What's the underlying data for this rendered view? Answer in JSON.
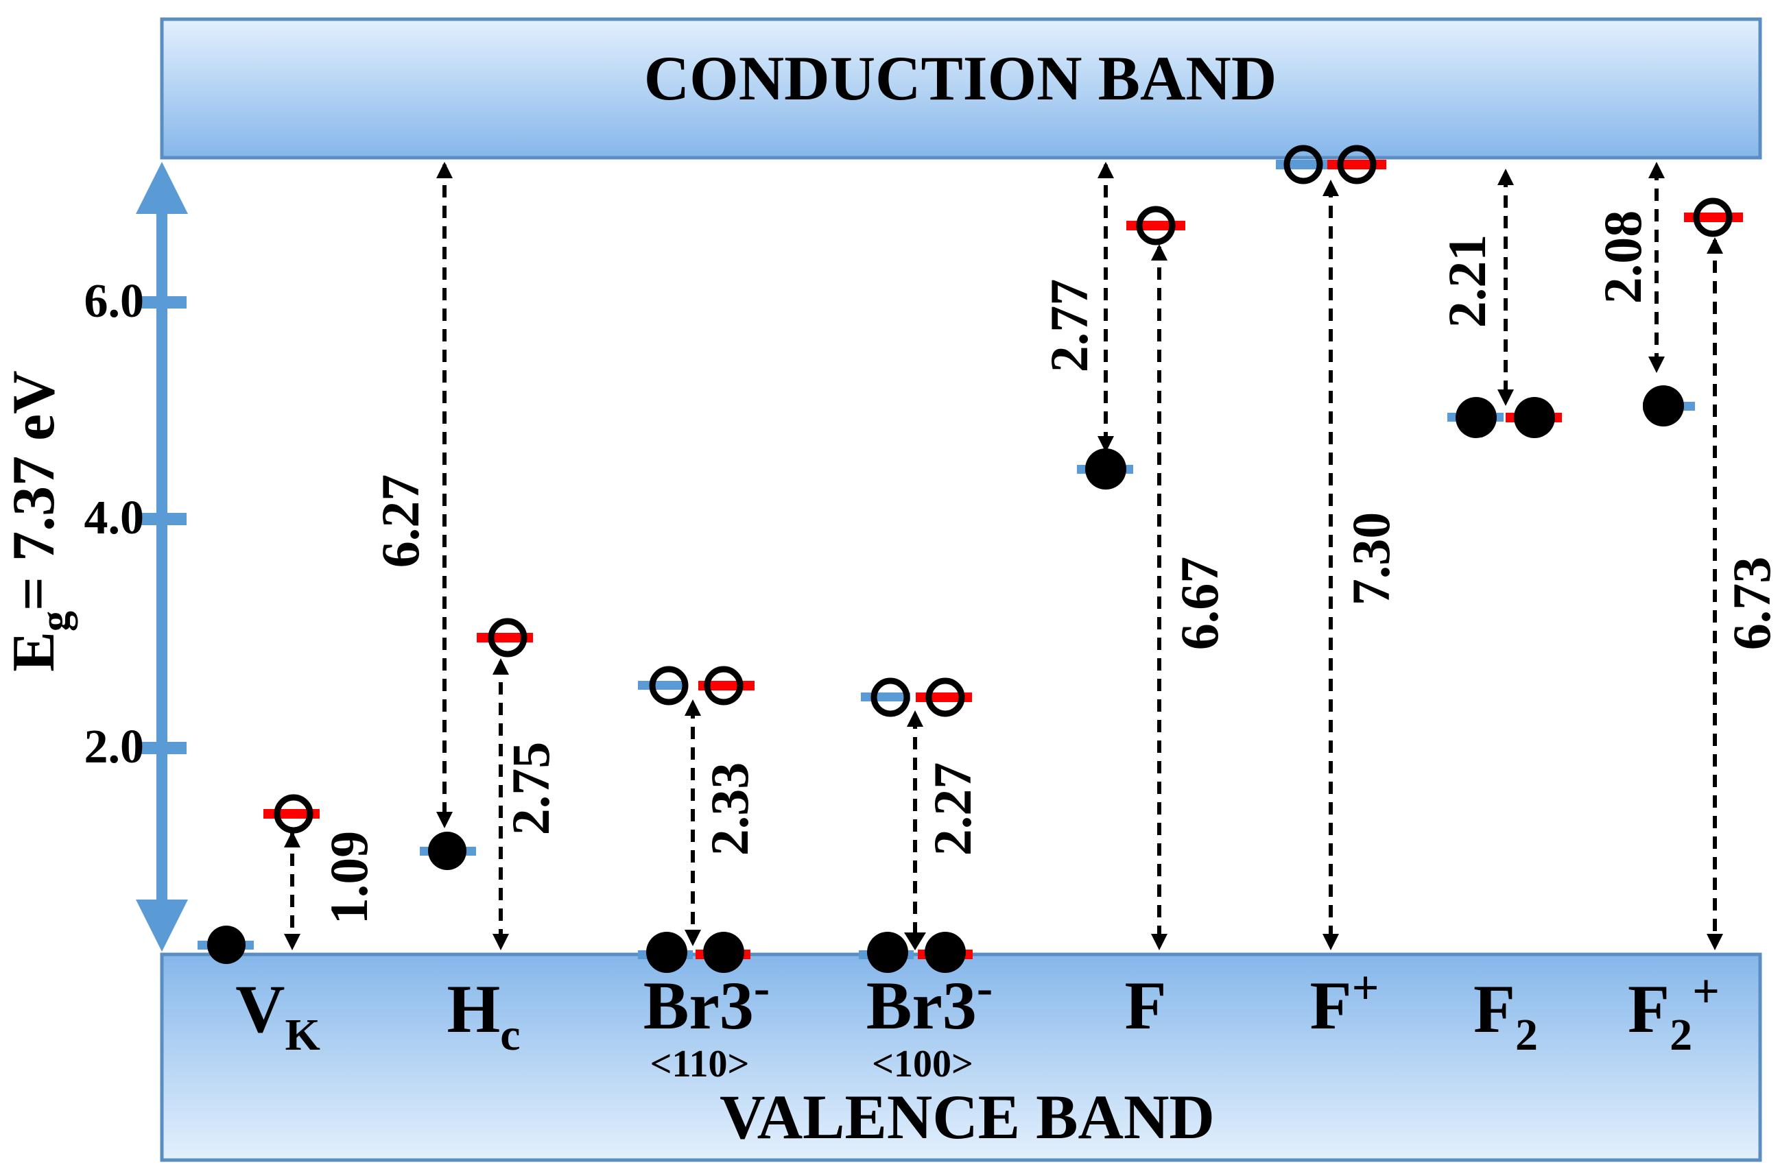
{
  "bands": {
    "conduction_label": "CONDUCTION BAND",
    "valence_label": "VALENCE BAND",
    "gradient_dark": "#86b7ea",
    "gradient_light": "#e3f0fd",
    "border_color": "#5a8ec2"
  },
  "axis": {
    "label_main": "E",
    "label_sub": "g",
    "label_rest": "= 7.37 eV",
    "ticks": [
      "2.0",
      "4.0",
      "6.0"
    ],
    "arrow_color": "#5b9bd5"
  },
  "colors": {
    "blue_level": "#5b9bd5",
    "red_level": "#ff0000"
  },
  "defects": [
    {
      "name": "V",
      "sub": "K",
      "sup": "",
      "dir": ""
    },
    {
      "name": "H",
      "sub": "c",
      "sup": "",
      "dir": ""
    },
    {
      "name": "Br",
      "sub": "3",
      "sup": "-",
      "dir": "<110>"
    },
    {
      "name": "Br",
      "sub": "3",
      "sup": "-",
      "dir": "<100>"
    },
    {
      "name": "F",
      "sub": "",
      "sup": "",
      "dir": ""
    },
    {
      "name": "F",
      "sub": "",
      "sup": "+",
      "dir": ""
    },
    {
      "name": "F",
      "sub": "2",
      "sup": "",
      "dir": ""
    },
    {
      "name": "F",
      "sub": "2",
      "sup": "+",
      "dir": ""
    }
  ],
  "transitions": [
    "1.09",
    "6.27",
    "2.75",
    "2.33",
    "2.27",
    "2.77",
    "6.67",
    "7.30",
    "2.21",
    "2.08",
    "6.73"
  ]
}
